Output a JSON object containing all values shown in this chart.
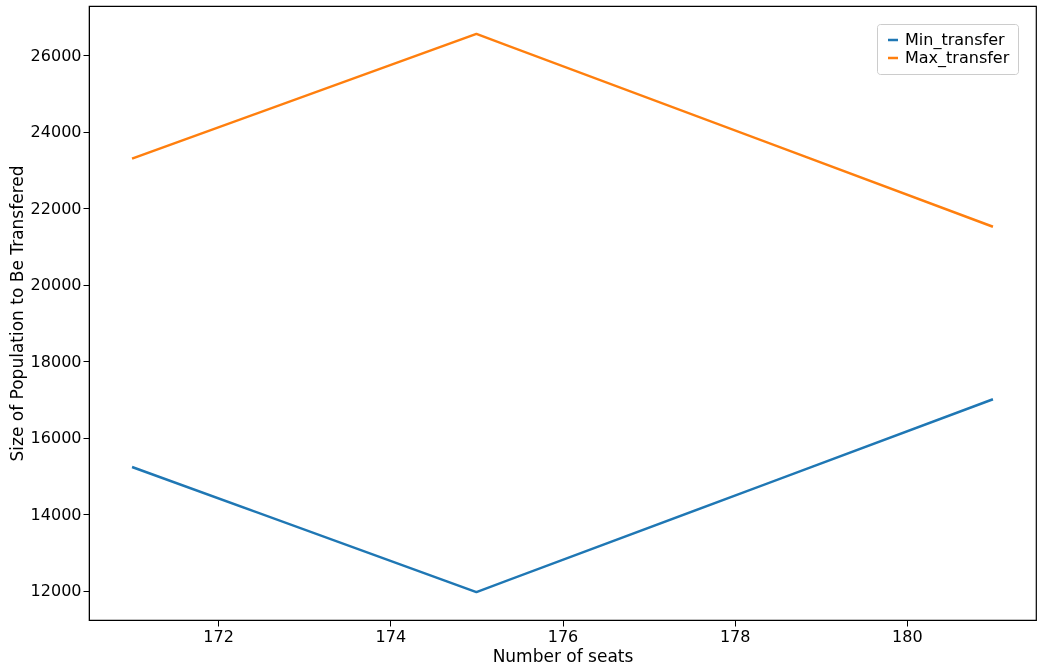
{
  "chart_data": {
    "type": "line",
    "xlabel": "Number of seats",
    "ylabel": "Size of Population to Be Transfered",
    "x": [
      171,
      175,
      181
    ],
    "series": [
      {
        "name": "Min_transfer",
        "color": "#1f77b4",
        "values": [
          15240,
          11970,
          17010
        ]
      },
      {
        "name": "Max_transfer",
        "color": "#ff7f0e",
        "values": [
          23300,
          26560,
          21520
        ]
      }
    ],
    "xlim": [
      170.5,
      181.5
    ],
    "xticks": [
      172,
      174,
      176,
      178,
      180
    ],
    "ylim": [
      11240,
      27290
    ],
    "yticks": [
      12000,
      14000,
      16000,
      18000,
      20000,
      22000,
      24000,
      26000
    ],
    "grid": false,
    "legend": "top right",
    "marker": "none",
    "line_style": "solid"
  }
}
